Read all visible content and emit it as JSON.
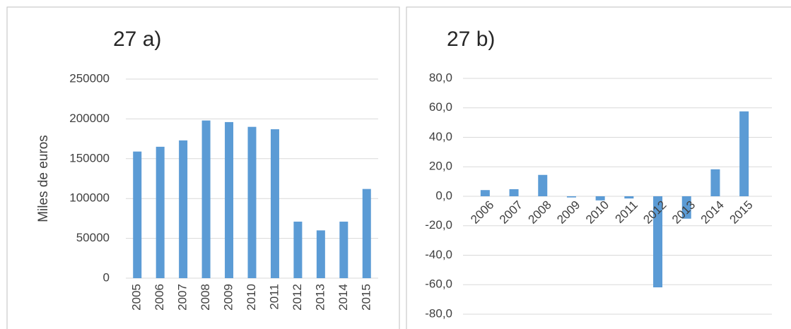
{
  "chart_data": [
    {
      "type": "bar",
      "title": "27 a)",
      "ylabel": "Miles de euros",
      "categories": [
        "2005",
        "2006",
        "2007",
        "2008",
        "2009",
        "2010",
        "2011",
        "2012",
        "2013",
        "2014",
        "2015"
      ],
      "values": [
        159000,
        165000,
        173000,
        198000,
        196000,
        190000,
        187000,
        71000,
        60000,
        71000,
        112000
      ],
      "color": "#5b9bd5",
      "ylim": [
        0,
        250000
      ],
      "yticks": [
        0,
        50000,
        100000,
        150000,
        200000,
        250000
      ],
      "grid": true
    },
    {
      "type": "bar",
      "title": "27 b)",
      "categories": [
        "2006",
        "2007",
        "2008",
        "2009",
        "2010",
        "2011",
        "2012",
        "2013",
        "2014",
        "2015"
      ],
      "values": [
        4.2,
        4.8,
        14.5,
        -0.8,
        -2.8,
        -1.5,
        -61.8,
        -15.2,
        18.3,
        57.6
      ],
      "color": "#5b9bd5",
      "ylim": [
        -80,
        80
      ],
      "yticks": [
        {
          "value": -80,
          "label": "-80,0"
        },
        {
          "value": -60,
          "label": "-60,0"
        },
        {
          "value": -40,
          "label": "-40,0"
        },
        {
          "value": -20,
          "label": "-20,0"
        },
        {
          "value": 0,
          "label": "0,0"
        },
        {
          "value": 20,
          "label": "20,0"
        },
        {
          "value": 40,
          "label": "40,0"
        },
        {
          "value": 60,
          "label": "60,0"
        },
        {
          "value": 80,
          "label": "80,0"
        }
      ],
      "grid": true
    }
  ]
}
